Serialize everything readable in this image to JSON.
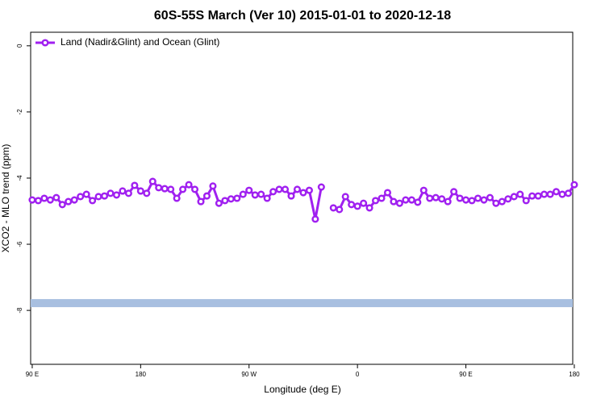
{
  "chart_data": {
    "type": "line",
    "title": "60S-55S March (Ver 10)   2015-01-01 to 2020-12-18",
    "xlabel": "Longitude (deg E)",
    "ylabel": "XCO2 - MLO trend (ppm)",
    "xlim": [
      88.7,
      538.7
    ],
    "ylim": [
      -9.63,
      0.41
    ],
    "xticks": [
      {
        "value": 90,
        "label": "90 E"
      },
      {
        "value": 180,
        "label": "180"
      },
      {
        "value": 270,
        "label": "90 W"
      },
      {
        "value": 360,
        "label": "0"
      },
      {
        "value": 450,
        "label": "90 E"
      },
      {
        "value": 540,
        "label": "180"
      }
    ],
    "yticks": [
      0,
      -2,
      -4,
      -6,
      -8
    ],
    "legend": "top-left",
    "x": [
      90,
      95,
      100,
      105,
      110,
      115,
      120,
      125,
      130,
      135,
      140,
      145,
      150,
      155,
      160,
      165,
      170,
      175,
      180,
      185,
      190,
      195,
      200,
      205,
      210,
      215,
      220,
      225,
      230,
      235,
      240,
      245,
      250,
      255,
      260,
      265,
      270,
      275,
      280,
      285,
      290,
      295,
      300,
      305,
      310,
      315,
      320,
      325,
      330,
      335,
      340,
      345,
      350,
      355,
      360,
      365,
      370,
      375,
      380,
      385,
      390,
      395,
      400,
      405,
      410,
      415,
      420,
      425,
      430,
      435,
      440,
      445,
      450,
      455,
      460,
      465,
      470,
      475,
      480,
      485,
      490,
      495,
      500,
      505,
      510,
      515,
      520,
      525,
      530,
      535,
      540
    ],
    "series": [
      {
        "name": "Land (Nadir&Glint) and Ocean (Glint)",
        "color": "#a020f0",
        "values": [
          -4.66,
          -4.68,
          -4.61,
          -4.66,
          -4.59,
          -4.8,
          -4.71,
          -4.66,
          -4.56,
          -4.49,
          -4.68,
          -4.56,
          -4.54,
          -4.46,
          -4.51,
          -4.39,
          -4.46,
          -4.22,
          -4.39,
          -4.46,
          -4.1,
          -4.29,
          -4.32,
          -4.34,
          -4.61,
          -4.34,
          -4.2,
          -4.34,
          -4.71,
          -4.54,
          -4.24,
          -4.76,
          -4.68,
          -4.63,
          -4.61,
          -4.49,
          -4.37,
          -4.51,
          -4.49,
          -4.61,
          -4.41,
          -4.34,
          -4.34,
          -4.54,
          -4.34,
          -4.44,
          -4.37,
          -5.24,
          -4.27,
          null,
          -4.9,
          -4.95,
          -4.56,
          -4.8,
          -4.85,
          -4.76,
          -4.9,
          -4.68,
          -4.61,
          -4.44,
          -4.71,
          -4.76,
          -4.66,
          -4.66,
          -4.73,
          -4.37,
          -4.61,
          -4.59,
          -4.63,
          -4.71,
          -4.41,
          -4.61,
          -4.66,
          -4.68,
          -4.61,
          -4.66,
          -4.59,
          -4.76,
          -4.71,
          -4.63,
          -4.56,
          -4.49,
          -4.68,
          -4.54,
          -4.54,
          -4.49,
          -4.49,
          -4.41,
          -4.49,
          -4.46,
          -4.2
        ]
      }
    ],
    "band": {
      "value": -7.78,
      "color": "#a8bfe0"
    }
  }
}
